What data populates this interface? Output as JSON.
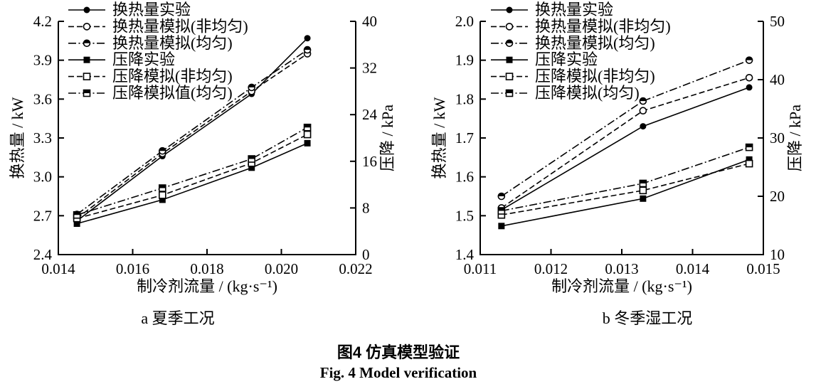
{
  "figure": {
    "caption_zh": "图4  仿真模型验证",
    "caption_en": "Fig. 4  Model verification"
  },
  "colors": {
    "ink": "#000000",
    "background": "#ffffff"
  },
  "chart_data": [
    {
      "type": "line",
      "sub_caption": "a 夏季工况",
      "xlabel": "制冷剂流量 / (kg·s⁻¹)",
      "ylabel_left": "换热量 / kW",
      "ylabel_right": "压降 / kPa",
      "xlim": [
        0.014,
        0.022
      ],
      "x_tick_labels": [
        "0.014",
        "0.016",
        "0.018",
        "0.020",
        "0.022"
      ],
      "ylim_left": [
        2.4,
        4.2
      ],
      "y_tick_labels_left": [
        "2.4",
        "2.7",
        "3.0",
        "3.3",
        "3.6",
        "3.9",
        "4.2"
      ],
      "ylim_right": [
        0,
        40
      ],
      "y_tick_labels_right": [
        "0",
        "8",
        "16",
        "24",
        "32",
        "40"
      ],
      "grid": false,
      "legend_position": "top-left",
      "x": [
        0.0145,
        0.0168,
        0.0192,
        0.0207
      ],
      "series": [
        {
          "name": "换热量实验",
          "axis": "left",
          "line": "solid",
          "marker": "circle-filled",
          "values": [
            2.66,
            3.16,
            3.64,
            4.07
          ]
        },
        {
          "name": "换热量模拟(非均匀)",
          "axis": "left",
          "line": "dashed",
          "marker": "circle-open",
          "values": [
            2.68,
            3.18,
            3.66,
            3.95
          ]
        },
        {
          "name": "换热量模拟(均匀)",
          "axis": "left",
          "line": "dashdot",
          "marker": "circle-half",
          "values": [
            2.71,
            3.2,
            3.69,
            3.98
          ]
        },
        {
          "name": "压降实验",
          "axis": "right",
          "line": "solid",
          "marker": "square-filled",
          "values": [
            5.3,
            9.4,
            14.9,
            19.1
          ]
        },
        {
          "name": "压降模拟(非均匀)",
          "axis": "right",
          "line": "dashed",
          "marker": "square-open",
          "values": [
            6.2,
            10.2,
            15.7,
            20.6
          ]
        },
        {
          "name": "压降模拟值(均匀)",
          "axis": "right",
          "line": "dashdot",
          "marker": "square-half",
          "values": [
            6.8,
            11.4,
            16.4,
            21.8
          ]
        }
      ]
    },
    {
      "type": "line",
      "sub_caption": "b 冬季湿工况",
      "xlabel": "制冷剂流量 / (kg·s⁻¹)",
      "ylabel_left": "换热量 / kW",
      "ylabel_right": "压降 / kPa",
      "xlim": [
        0.011,
        0.015
      ],
      "x_tick_labels": [
        "0.011",
        "0.012",
        "0.013",
        "0.014",
        "0.015"
      ],
      "ylim_left": [
        1.4,
        2.0
      ],
      "y_tick_labels_left": [
        "1.4",
        "1.5",
        "1.6",
        "1.7",
        "1.8",
        "1.9",
        "2.0"
      ],
      "ylim_right": [
        10,
        50
      ],
      "y_tick_labels_right": [
        "10",
        "20",
        "30",
        "40",
        "50"
      ],
      "grid": false,
      "legend_position": "top-left",
      "x": [
        0.0113,
        0.0133,
        0.0148
      ],
      "series": [
        {
          "name": "换热量实验",
          "axis": "left",
          "line": "solid",
          "marker": "circle-filled",
          "values": [
            1.515,
            1.73,
            1.83
          ]
        },
        {
          "name": "换热量模拟(非均匀)",
          "axis": "left",
          "line": "dashed",
          "marker": "circle-open",
          "values": [
            1.52,
            1.77,
            1.855
          ]
        },
        {
          "name": "换热量模拟(均匀)",
          "axis": "left",
          "line": "dashdot",
          "marker": "circle-half",
          "values": [
            1.55,
            1.795,
            1.9
          ]
        },
        {
          "name": "压降实验",
          "axis": "right",
          "line": "solid",
          "marker": "square-filled",
          "values": [
            14.9,
            19.6,
            26.3
          ]
        },
        {
          "name": "压降模拟(非均匀)",
          "axis": "right",
          "line": "dashed",
          "marker": "square-open",
          "values": [
            16.8,
            21.0,
            25.6
          ]
        },
        {
          "name": "压降模拟(均匀)",
          "axis": "right",
          "line": "dashdot",
          "marker": "square-half",
          "values": [
            17.5,
            22.2,
            28.4
          ]
        }
      ]
    }
  ]
}
